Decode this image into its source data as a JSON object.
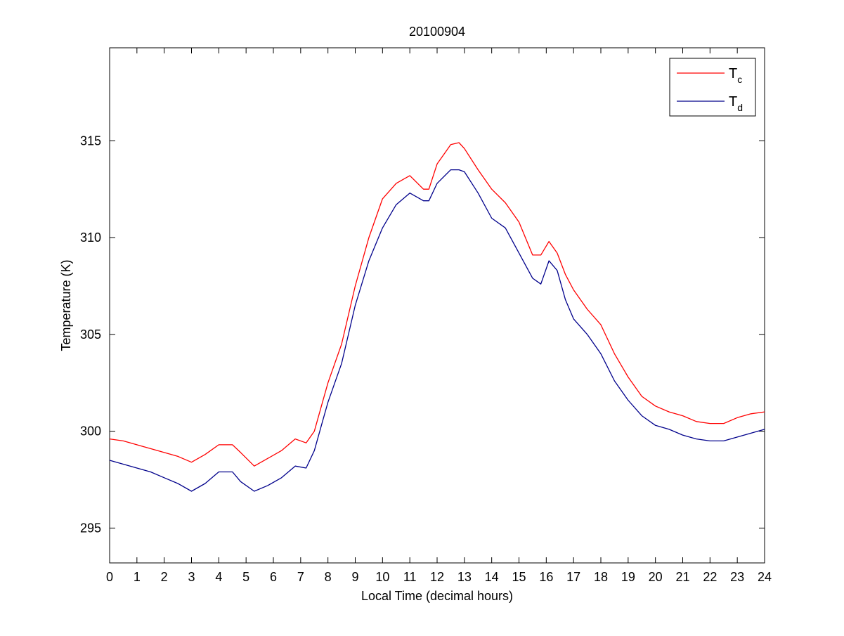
{
  "chart_data": {
    "type": "line",
    "title": "20100904",
    "xlabel": "Local Time (decimal hours)",
    "ylabel": "Temperature (K)",
    "xlim": [
      0,
      24
    ],
    "ylim": [
      293.2,
      319.8
    ],
    "xticks": [
      "0",
      "1",
      "2",
      "3",
      "4",
      "5",
      "6",
      "7",
      "8",
      "9",
      "10",
      "11",
      "12",
      "13",
      "14",
      "15",
      "16",
      "17",
      "18",
      "19",
      "20",
      "21",
      "22",
      "23",
      "24"
    ],
    "yticks": [
      "295",
      "300",
      "305",
      "310",
      "315"
    ],
    "grid": false,
    "legend_position": "top-right",
    "series": [
      {
        "name": "T_c",
        "legend_main": "T",
        "legend_sub": "c",
        "color": "#ff0000",
        "x": [
          0,
          0.5,
          1,
          1.5,
          2,
          2.5,
          3,
          3.5,
          4,
          4.5,
          4.8,
          5.3,
          5.8,
          6.3,
          6.8,
          7.2,
          7.5,
          7.8,
          8,
          8.5,
          9,
          9.5,
          10,
          10.5,
          11,
          11.5,
          11.7,
          12,
          12.5,
          12.8,
          13,
          13.5,
          14,
          14.5,
          15,
          15.5,
          15.8,
          16.1,
          16.4,
          16.7,
          17,
          17.5,
          18,
          18.5,
          19,
          19.5,
          20,
          20.5,
          21,
          21.5,
          22,
          22.5,
          23,
          23.5,
          24
        ],
        "values": [
          299.6,
          299.5,
          299.3,
          299.1,
          298.9,
          298.7,
          298.4,
          298.8,
          299.3,
          299.3,
          298.9,
          298.2,
          298.6,
          299.0,
          299.6,
          299.4,
          300.0,
          301.5,
          302.5,
          304.5,
          307.5,
          310.0,
          312.0,
          312.8,
          313.2,
          312.5,
          312.5,
          313.8,
          314.8,
          314.9,
          314.6,
          313.5,
          312.5,
          311.8,
          310.8,
          309.1,
          309.1,
          309.8,
          309.2,
          308.1,
          307.3,
          306.3,
          305.5,
          304.0,
          302.8,
          301.8,
          301.3,
          301.0,
          300.8,
          300.5,
          300.4,
          300.4,
          300.7,
          300.9,
          301.0
        ]
      },
      {
        "name": "T_d",
        "legend_main": "T",
        "legend_sub": "d",
        "color": "#00008b",
        "x": [
          0,
          0.5,
          1,
          1.5,
          2,
          2.5,
          3,
          3.5,
          4,
          4.5,
          4.8,
          5.3,
          5.8,
          6.3,
          6.8,
          7.2,
          7.5,
          7.8,
          8,
          8.5,
          9,
          9.5,
          10,
          10.5,
          11,
          11.5,
          11.7,
          12,
          12.5,
          12.8,
          13,
          13.5,
          14,
          14.5,
          15,
          15.5,
          15.8,
          16.1,
          16.4,
          16.7,
          17,
          17.5,
          18,
          18.5,
          19,
          19.5,
          20,
          20.5,
          21,
          21.5,
          22,
          22.5,
          23,
          23.5,
          24
        ],
        "values": [
          298.5,
          298.3,
          298.1,
          297.9,
          297.6,
          297.3,
          296.9,
          297.3,
          297.9,
          297.9,
          297.4,
          296.9,
          297.2,
          297.6,
          298.2,
          298.1,
          299.0,
          300.5,
          301.5,
          303.5,
          306.5,
          308.8,
          310.5,
          311.7,
          312.3,
          311.9,
          311.9,
          312.8,
          313.5,
          313.5,
          313.4,
          312.3,
          311.0,
          310.5,
          309.2,
          307.9,
          307.6,
          308.8,
          308.3,
          306.8,
          305.8,
          305.0,
          304.0,
          302.6,
          301.6,
          300.8,
          300.3,
          300.1,
          299.8,
          299.6,
          299.5,
          299.5,
          299.7,
          299.9,
          300.1
        ]
      }
    ]
  }
}
